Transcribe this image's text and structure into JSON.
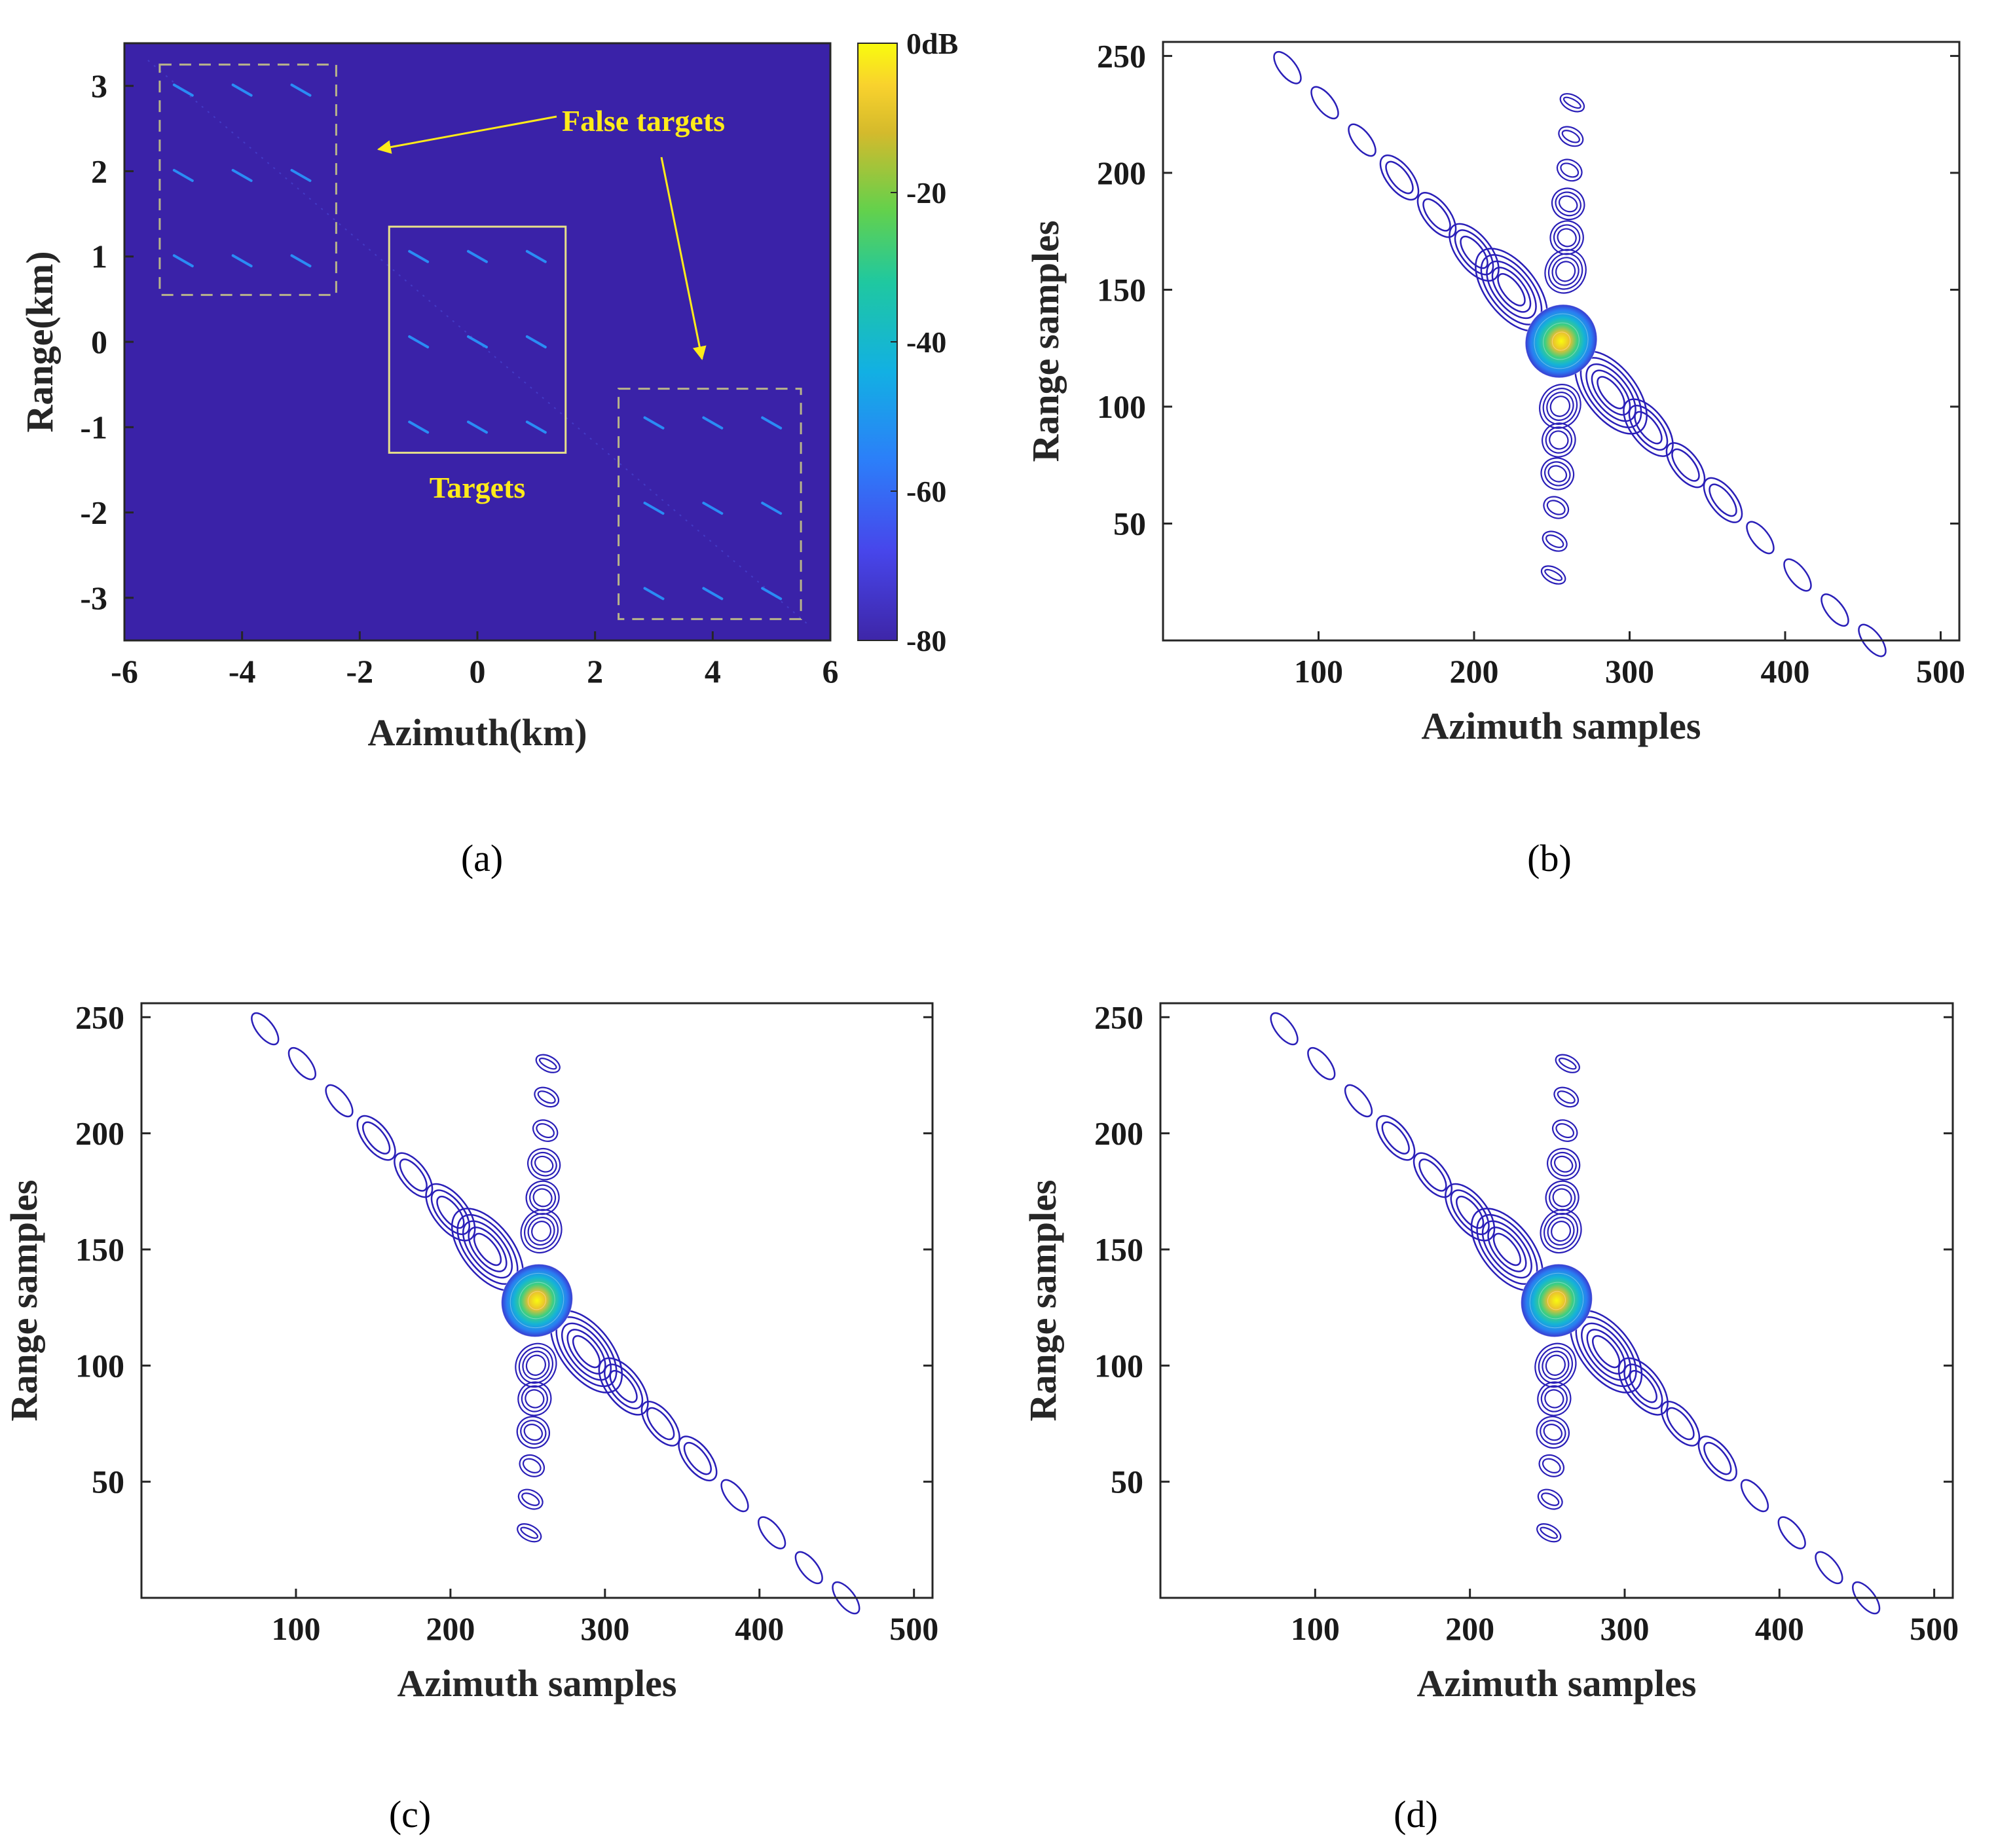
{
  "colors": {
    "background_db": "#3a22a8",
    "contour": "#2a1fb8",
    "annotation": "#ffeb1a",
    "axis": "#262626"
  },
  "chart_data": [
    {
      "id": "a",
      "type": "heatmap",
      "caption": "(a)",
      "xlabel": "Azimuth(km)",
      "ylabel": "Range(km)",
      "xlim": [
        -6,
        6
      ],
      "ylim": [
        -3.5,
        3.5
      ],
      "xticks": [
        -6,
        -4,
        -2,
        0,
        2,
        4,
        6
      ],
      "yticks": [
        3,
        2,
        1,
        0,
        -1,
        -2,
        -3
      ],
      "colorbar": {
        "label": "dB",
        "range": [
          -80,
          0
        ],
        "ticks": [
          0,
          -20,
          -40,
          -60,
          -80
        ],
        "top_label": "0dB"
      },
      "annotations": {
        "false_targets_label": "False targets",
        "targets_label": "Targets"
      },
      "regions": [
        {
          "role": "false_target_box",
          "style": "dashed",
          "xrange": [
            -5.4,
            -2.4
          ],
          "yrange": [
            0.55,
            3.25
          ]
        },
        {
          "role": "target_box",
          "style": "solid",
          "xrange": [
            -1.5,
            1.5
          ],
          "yrange": [
            -1.3,
            1.35
          ]
        },
        {
          "role": "false_target_box",
          "style": "dashed",
          "xrange": [
            2.4,
            5.5
          ],
          "yrange": [
            -3.25,
            -0.55
          ]
        }
      ],
      "points": [
        {
          "x": -5.0,
          "y": 2.95
        },
        {
          "x": -4.0,
          "y": 2.95
        },
        {
          "x": -3.0,
          "y": 2.95
        },
        {
          "x": -5.0,
          "y": 1.95
        },
        {
          "x": -4.0,
          "y": 1.95
        },
        {
          "x": -3.0,
          "y": 1.95
        },
        {
          "x": -5.0,
          "y": 0.95
        },
        {
          "x": -4.0,
          "y": 0.95
        },
        {
          "x": -3.0,
          "y": 0.95
        },
        {
          "x": -1.0,
          "y": 1.0
        },
        {
          "x": 0.0,
          "y": 1.0
        },
        {
          "x": 1.0,
          "y": 1.0
        },
        {
          "x": -1.0,
          "y": 0.0
        },
        {
          "x": 0.0,
          "y": 0.0
        },
        {
          "x": 1.0,
          "y": 0.0
        },
        {
          "x": -1.0,
          "y": -1.0
        },
        {
          "x": 0.0,
          "y": -1.0
        },
        {
          "x": 1.0,
          "y": -1.0
        },
        {
          "x": 3.0,
          "y": -0.95
        },
        {
          "x": 4.0,
          "y": -0.95
        },
        {
          "x": 5.0,
          "y": -0.95
        },
        {
          "x": 3.0,
          "y": -1.95
        },
        {
          "x": 4.0,
          "y": -1.95
        },
        {
          "x": 5.0,
          "y": -1.95
        },
        {
          "x": 3.0,
          "y": -2.95
        },
        {
          "x": 4.0,
          "y": -2.95
        },
        {
          "x": 5.0,
          "y": -2.95
        }
      ]
    },
    {
      "id": "b",
      "type": "contour",
      "caption": "(b)",
      "xlabel": "Azimuth samples",
      "ylabel": "Range samples",
      "xlim": [
        0,
        512
      ],
      "ylim": [
        0,
        256
      ],
      "xticks": [
        100,
        200,
        300,
        400,
        500
      ],
      "yticks": [
        250,
        200,
        150,
        100,
        50
      ],
      "peak": {
        "x": 256,
        "y": 128
      },
      "azimuth_sidelobes": [
        {
          "x": 80,
          "y": 245
        },
        {
          "x": 104,
          "y": 230
        },
        {
          "x": 128,
          "y": 214
        },
        {
          "x": 152,
          "y": 198
        },
        {
          "x": 176,
          "y": 182
        },
        {
          "x": 200,
          "y": 166
        },
        {
          "x": 224,
          "y": 150
        },
        {
          "x": 288,
          "y": 106
        },
        {
          "x": 312,
          "y": 91
        },
        {
          "x": 336,
          "y": 75
        },
        {
          "x": 360,
          "y": 60
        },
        {
          "x": 384,
          "y": 44
        },
        {
          "x": 408,
          "y": 28
        },
        {
          "x": 432,
          "y": 13
        },
        {
          "x": 456,
          "y": 0
        }
      ],
      "range_sidelobe_extent": {
        "top": {
          "x": 258,
          "y": 230
        },
        "bottom": {
          "x": 256,
          "y": 28
        }
      }
    },
    {
      "id": "c",
      "type": "contour",
      "caption": "(c)",
      "xlabel": "Azimuth samples",
      "ylabel": "Range samples",
      "xlim": [
        0,
        512
      ],
      "ylim": [
        0,
        256
      ],
      "xticks": [
        100,
        200,
        300,
        400,
        500
      ],
      "yticks": [
        250,
        200,
        150,
        100,
        50
      ],
      "peak": {
        "x": 256,
        "y": 128
      },
      "azimuth_sidelobes": [
        {
          "x": 80,
          "y": 245
        },
        {
          "x": 104,
          "y": 230
        },
        {
          "x": 128,
          "y": 214
        },
        {
          "x": 152,
          "y": 198
        },
        {
          "x": 176,
          "y": 182
        },
        {
          "x": 200,
          "y": 166
        },
        {
          "x": 224,
          "y": 150
        },
        {
          "x": 288,
          "y": 106
        },
        {
          "x": 312,
          "y": 91
        },
        {
          "x": 336,
          "y": 75
        },
        {
          "x": 360,
          "y": 60
        },
        {
          "x": 384,
          "y": 44
        },
        {
          "x": 408,
          "y": 28
        },
        {
          "x": 432,
          "y": 13
        },
        {
          "x": 456,
          "y": 0
        }
      ],
      "range_sidelobe_extent": {
        "top": {
          "x": 258,
          "y": 230
        },
        "bottom": {
          "x": 256,
          "y": 28
        }
      }
    },
    {
      "id": "d",
      "type": "contour",
      "caption": "(d)",
      "xlabel": "Azimuth samples",
      "ylabel": "Range samples",
      "xlim": [
        0,
        512
      ],
      "ylim": [
        0,
        256
      ],
      "xticks": [
        100,
        200,
        300,
        400,
        500
      ],
      "yticks": [
        250,
        200,
        150,
        100,
        50
      ],
      "peak": {
        "x": 256,
        "y": 128
      },
      "azimuth_sidelobes": [
        {
          "x": 80,
          "y": 245
        },
        {
          "x": 104,
          "y": 230
        },
        {
          "x": 128,
          "y": 214
        },
        {
          "x": 152,
          "y": 198
        },
        {
          "x": 176,
          "y": 182
        },
        {
          "x": 200,
          "y": 166
        },
        {
          "x": 224,
          "y": 150
        },
        {
          "x": 288,
          "y": 106
        },
        {
          "x": 312,
          "y": 91
        },
        {
          "x": 336,
          "y": 75
        },
        {
          "x": 360,
          "y": 60
        },
        {
          "x": 384,
          "y": 44
        },
        {
          "x": 408,
          "y": 28
        },
        {
          "x": 432,
          "y": 13
        },
        {
          "x": 456,
          "y": 0
        }
      ],
      "range_sidelobe_extent": {
        "top": {
          "x": 258,
          "y": 230
        },
        "bottom": {
          "x": 256,
          "y": 28
        }
      }
    }
  ]
}
